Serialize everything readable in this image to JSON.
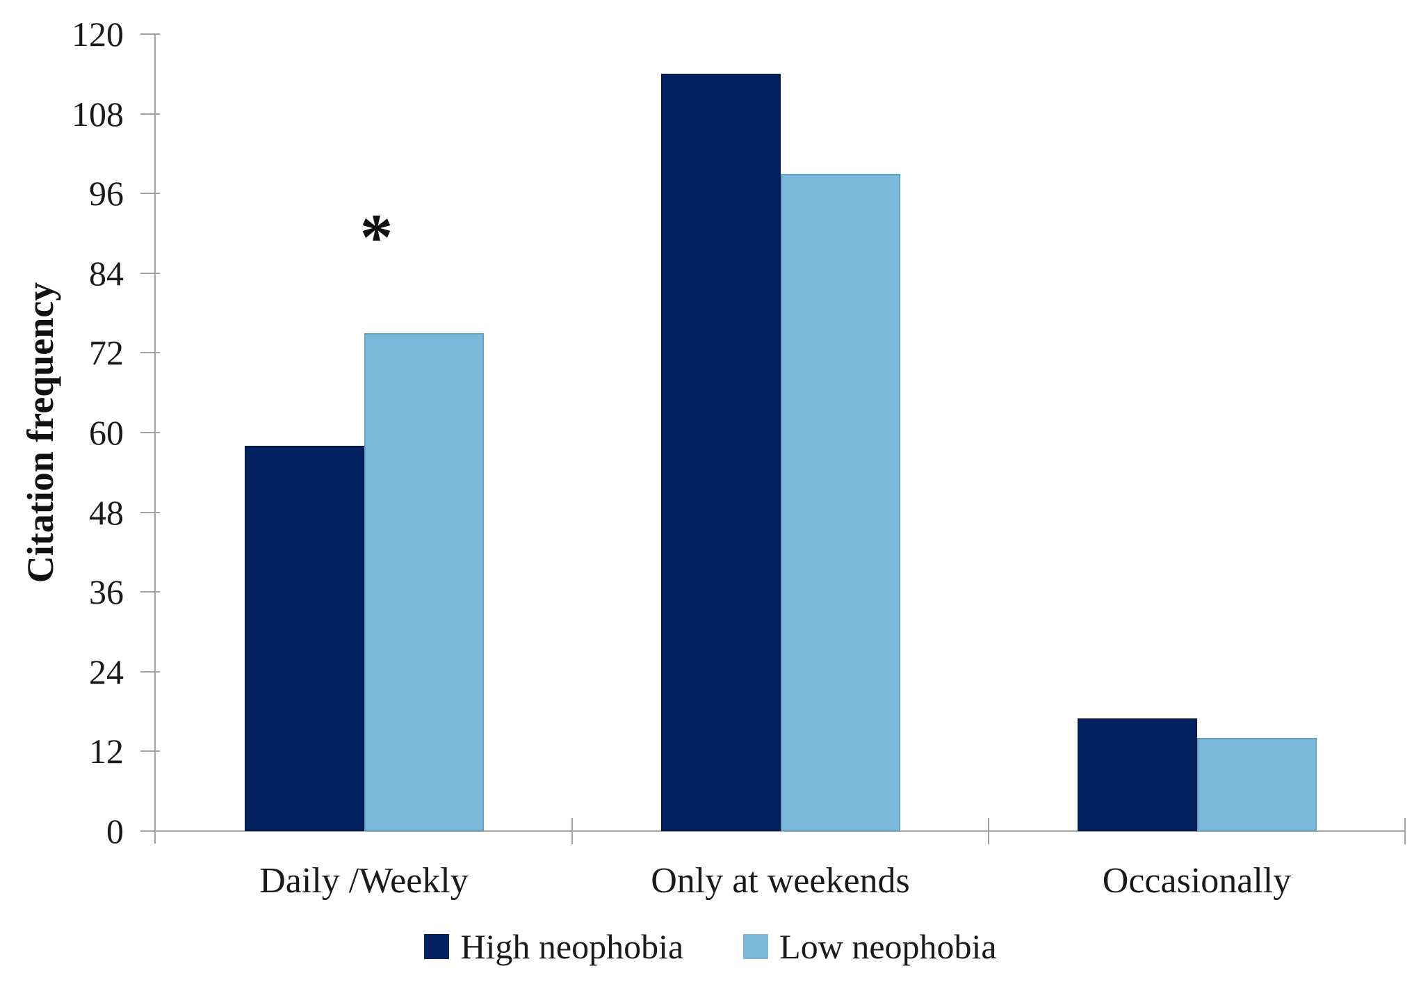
{
  "chart_data": {
    "type": "bar",
    "title": "",
    "xlabel": "",
    "ylabel": "Citation frequency",
    "categories": [
      "Daily /Weekly",
      "Only at weekends",
      "Occasionally"
    ],
    "series": [
      {
        "name": "High neophobia",
        "color": "#03215E",
        "border_color": "#021B4D",
        "values": [
          58,
          114,
          17
        ]
      },
      {
        "name": "Low neophobia",
        "color": "#7BB8D9",
        "border_color": "#5FA4C9",
        "values": [
          75,
          99,
          14
        ]
      }
    ],
    "ylim": [
      0,
      120
    ],
    "ytick_step": 12,
    "yticks": [
      0,
      12,
      24,
      36,
      48,
      60,
      72,
      84,
      96,
      108,
      120
    ],
    "grid": false,
    "legend_position": "bottom",
    "annotation": {
      "text": "*",
      "category_index": 0,
      "series_index": 1
    },
    "axis_color": "#A3A3A3"
  }
}
